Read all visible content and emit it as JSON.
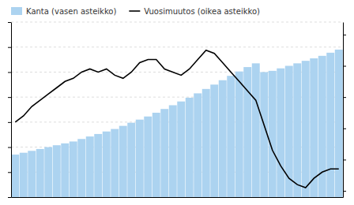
{
  "chart_data": {
    "type": "bar",
    "categories": [
      null,
      null,
      null,
      null,
      null,
      null,
      null,
      null,
      null,
      null,
      null,
      null,
      null,
      null,
      null,
      null,
      null,
      null,
      null,
      null,
      null,
      null,
      null,
      null,
      null,
      null,
      null,
      null,
      null,
      null,
      null,
      null,
      null,
      null,
      null,
      null,
      null,
      null,
      null,
      null
    ],
    "series": [
      {
        "name": "Kanta (vasen asteikko)",
        "type": "bar",
        "color": "#acd3f0",
        "values": [
          34000,
          35500,
          37000,
          38500,
          40000,
          41500,
          43000,
          44500,
          46500,
          48500,
          50500,
          52500,
          54500,
          57000,
          59500,
          62000,
          64500,
          67500,
          70500,
          73500,
          76500,
          79500,
          83000,
          86500,
          90000,
          93500,
          97000,
          100500,
          104000,
          107000,
          100000,
          101000,
          103000,
          105000,
          107000,
          109000,
          111000,
          113000,
          115500,
          118000
        ]
      },
      {
        "name": "Vuosimuutos (oikea asteikko)",
        "type": "line",
        "color": "#000000",
        "axis": "y2",
        "values": [
          6.0,
          7.0,
          8.5,
          9.5,
          10.5,
          11.5,
          12.5,
          13.0,
          14.0,
          14.5,
          14.0,
          14.5,
          13.5,
          13.0,
          14.0,
          15.5,
          16.0,
          16.0,
          14.5,
          14.0,
          13.5,
          14.5,
          16.0,
          17.5,
          17.0,
          15.5,
          14.0,
          12.5,
          11.0,
          9.5,
          5.5,
          1.5,
          -1.0,
          -3.0,
          -4.0,
          -4.5,
          -3.0,
          -2.0,
          -1.5,
          -1.5
        ]
      }
    ],
    "ylim": [
      0,
      140000
    ],
    "yticks": [
      0,
      20000,
      40000,
      60000,
      80000,
      100000,
      120000,
      140000
    ],
    "y2lim": [
      -6,
      22
    ],
    "y2ticks": [
      -5,
      0,
      5,
      10,
      15,
      20
    ],
    "grid": true,
    "legend": "upper left",
    "tick_labels": false
  }
}
